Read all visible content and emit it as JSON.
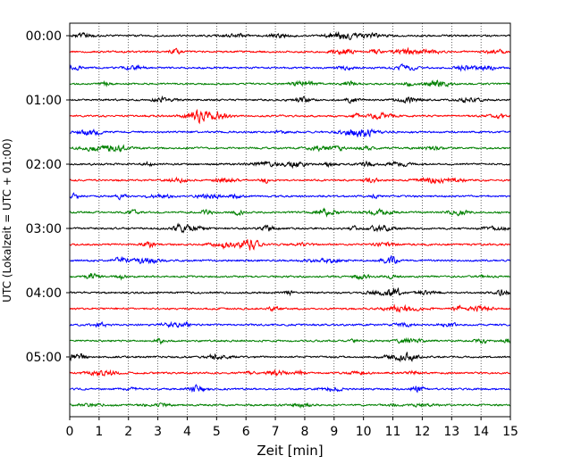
{
  "chart_data": {
    "type": "line",
    "title": "",
    "xlabel": "Zeit  [min]",
    "ylabel": "UTC (Lokalzeit = UTC + 01:00)",
    "xlim": [
      0,
      15
    ],
    "x_ticks": [
      "0",
      "1",
      "2",
      "3",
      "4",
      "5",
      "6",
      "7",
      "8",
      "9",
      "10",
      "11",
      "12",
      "13",
      "14",
      "15"
    ],
    "y_tick_labels": [
      "00:00",
      "01:00",
      "02:00",
      "03:00",
      "04:00",
      "05:00"
    ],
    "grid": "vertical dotted lines at each minute",
    "trace_interval_minutes": 15,
    "trace_colors": [
      "#000000",
      "#ff0000",
      "#0000ff",
      "#008000"
    ],
    "series": [
      {
        "start": "00:00",
        "color": "#000000"
      },
      {
        "start": "00:15",
        "color": "#ff0000"
      },
      {
        "start": "00:30",
        "color": "#0000ff"
      },
      {
        "start": "00:45",
        "color": "#008000"
      },
      {
        "start": "01:00",
        "color": "#000000"
      },
      {
        "start": "01:15",
        "color": "#ff0000"
      },
      {
        "start": "01:30",
        "color": "#0000ff"
      },
      {
        "start": "01:45",
        "color": "#008000"
      },
      {
        "start": "02:00",
        "color": "#000000"
      },
      {
        "start": "02:15",
        "color": "#ff0000"
      },
      {
        "start": "02:30",
        "color": "#0000ff"
      },
      {
        "start": "02:45",
        "color": "#008000"
      },
      {
        "start": "03:00",
        "color": "#000000"
      },
      {
        "start": "03:15",
        "color": "#ff0000"
      },
      {
        "start": "03:30",
        "color": "#0000ff"
      },
      {
        "start": "03:45",
        "color": "#008000"
      },
      {
        "start": "04:00",
        "color": "#000000"
      },
      {
        "start": "04:15",
        "color": "#ff0000"
      },
      {
        "start": "04:30",
        "color": "#0000ff"
      },
      {
        "start": "04:45",
        "color": "#008000"
      },
      {
        "start": "05:00",
        "color": "#000000"
      },
      {
        "start": "05:15",
        "color": "#ff0000"
      },
      {
        "start": "05:30",
        "color": "#0000ff"
      },
      {
        "start": "05:45",
        "color": "#008000"
      }
    ]
  }
}
